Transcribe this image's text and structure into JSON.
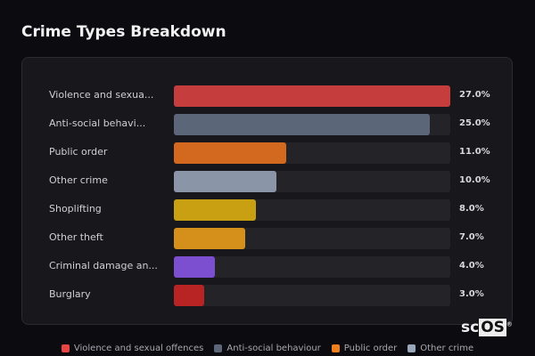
{
  "title": "Crime Types Breakdown",
  "chart_data": {
    "type": "bar",
    "orientation": "horizontal",
    "title": "Crime Types Breakdown",
    "categories": [
      "Violence and sexua...",
      "Anti-social behavi...",
      "Public order",
      "Other crime",
      "Shoplifting",
      "Other theft",
      "Criminal damage an...",
      "Burglary"
    ],
    "values": [
      27.0,
      25.0,
      11.0,
      10.0,
      8.0,
      7.0,
      4.0,
      3.0
    ],
    "value_labels": [
      "27.0%",
      "25.0%",
      "11.0%",
      "10.0%",
      "8.0%",
      "7.0%",
      "4.0%",
      "3.0%"
    ],
    "colors": [
      "#c53d3d",
      "#5b6779",
      "#d2691e",
      "#8a96a8",
      "#c9a012",
      "#d4901a",
      "#7b4fd0",
      "#b82424"
    ],
    "xlim": [
      0,
      27
    ],
    "grid": false,
    "legend_position": "bottom",
    "legend": [
      {
        "label": "Violence and sexual offences",
        "color": "#e84545"
      },
      {
        "label": "Anti-social behaviour",
        "color": "#5b6779"
      },
      {
        "label": "Public order",
        "color": "#f07f1e"
      },
      {
        "label": "Other crime",
        "color": "#9aa8bc"
      }
    ]
  },
  "logo": {
    "text_a": "sc",
    "text_b": "OS",
    "mark": "®"
  }
}
